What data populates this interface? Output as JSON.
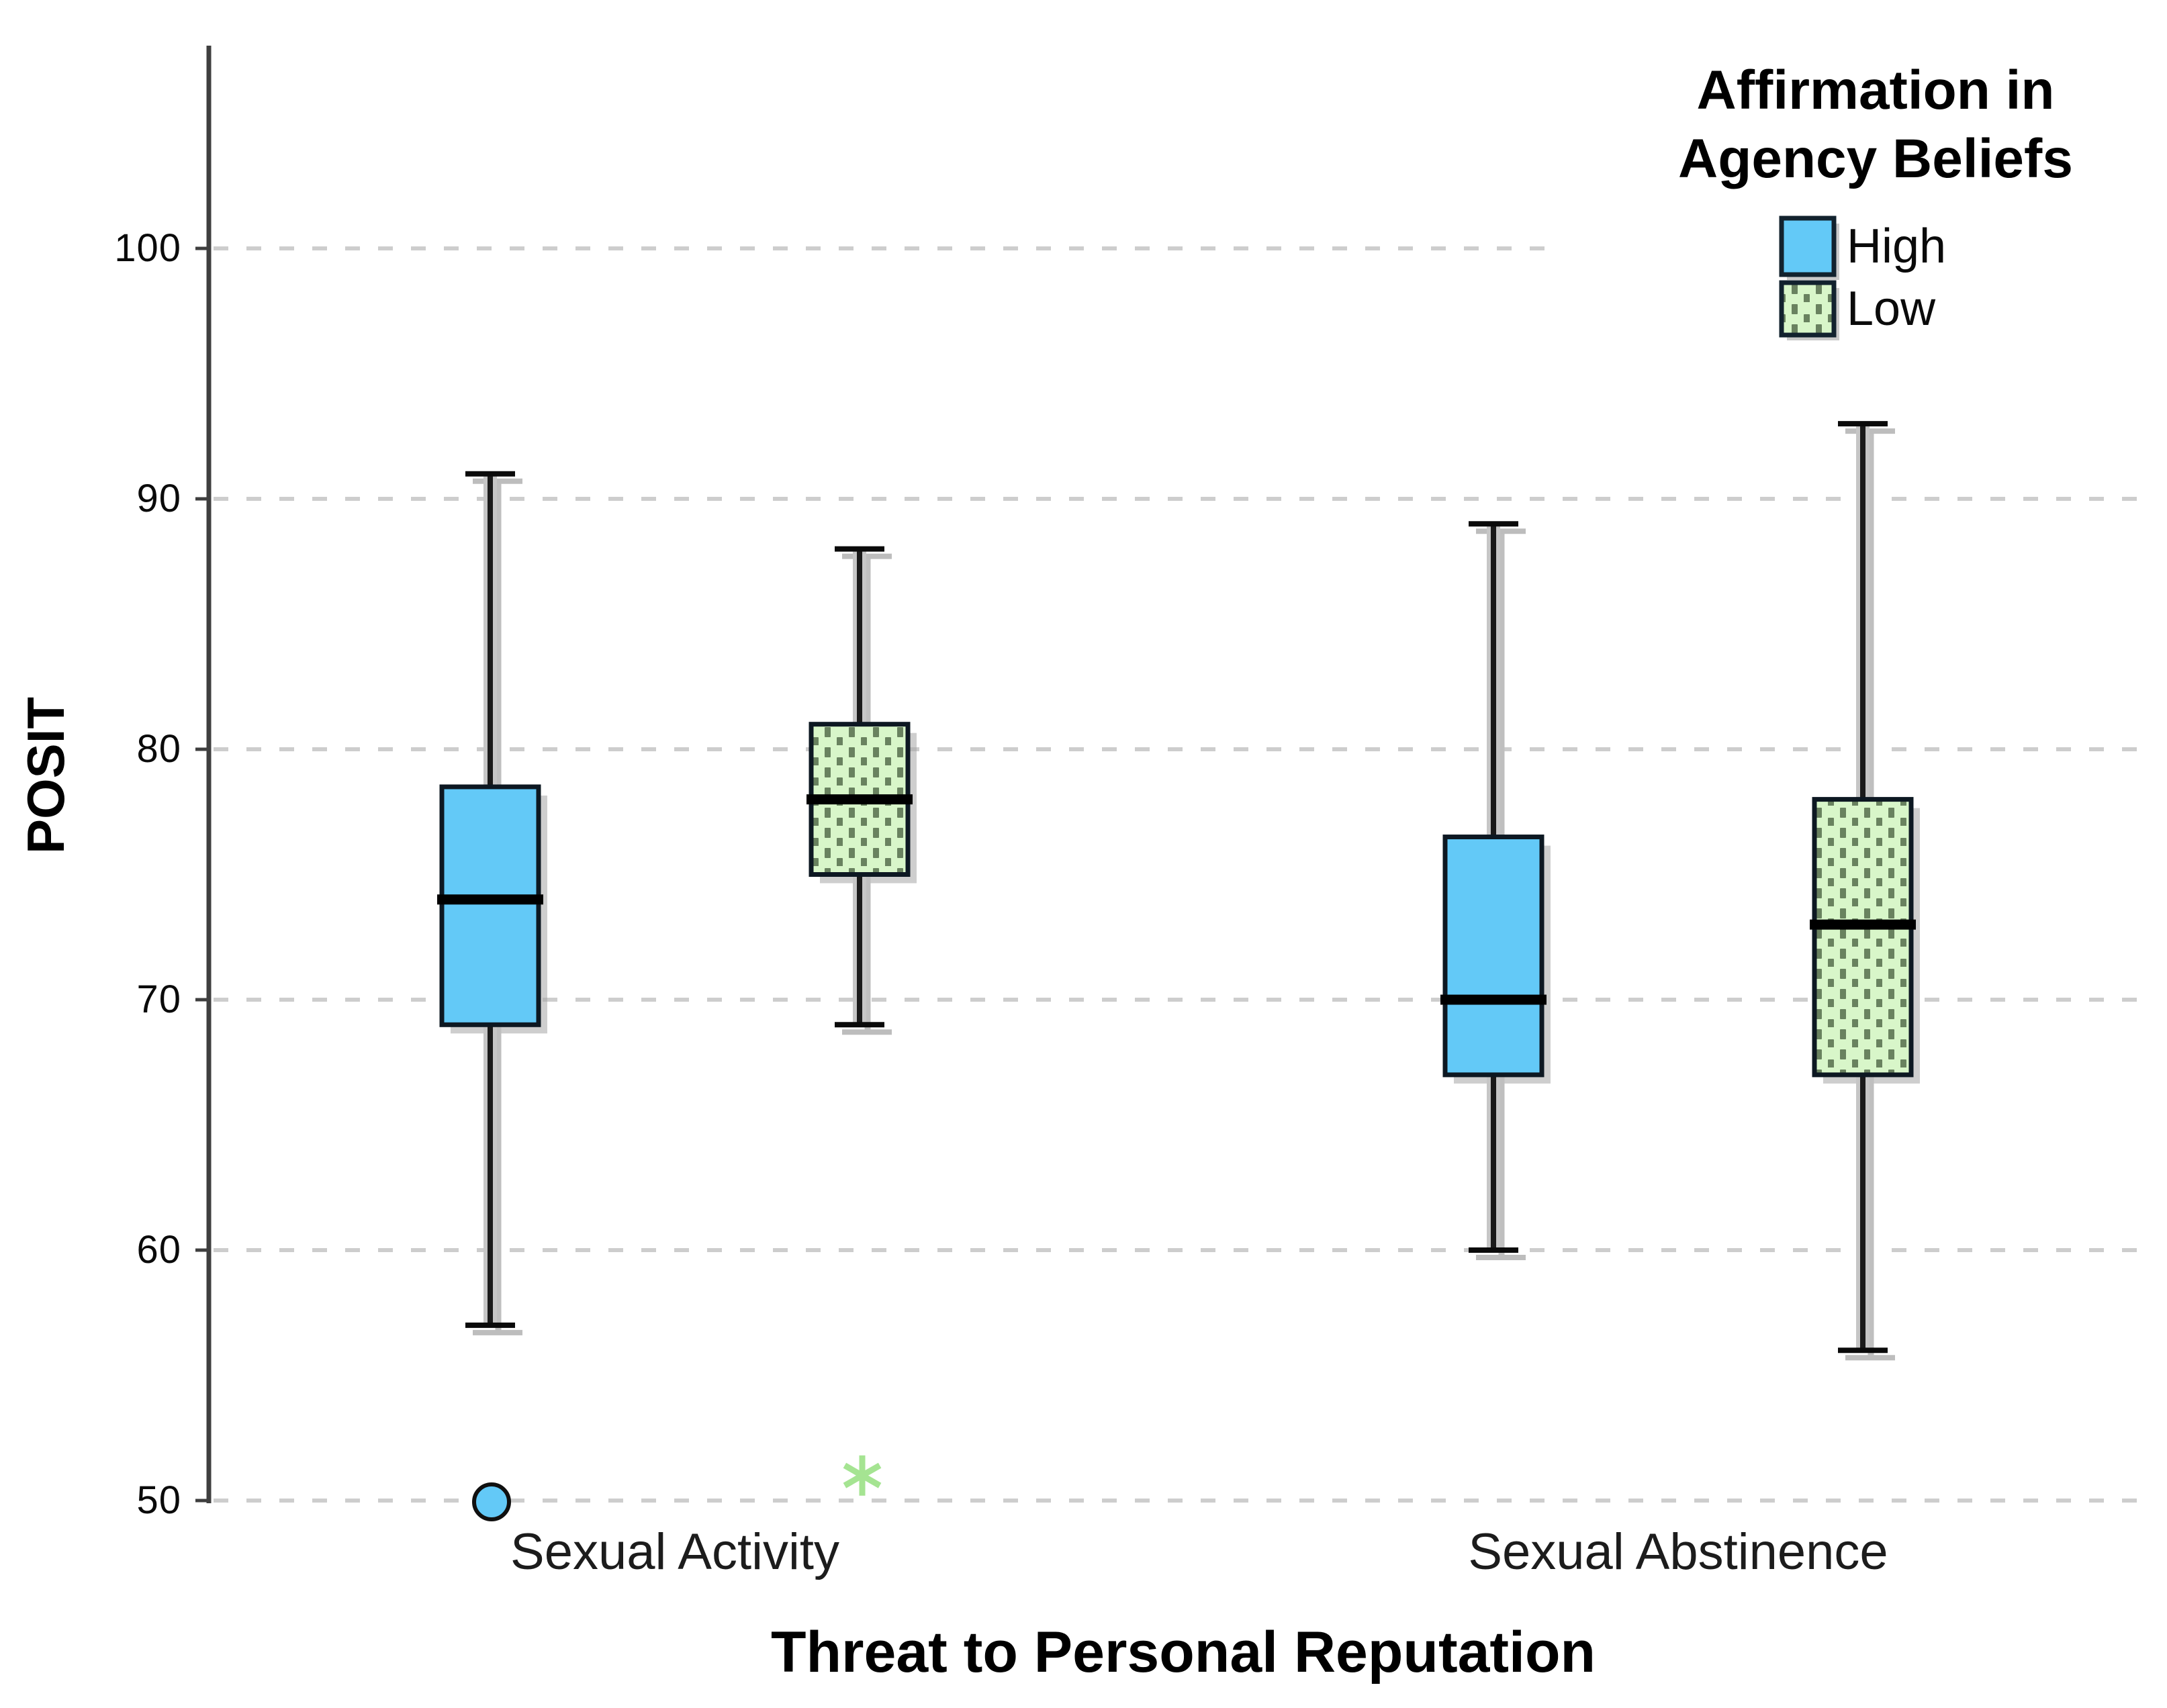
{
  "chart_data": {
    "type": "boxplot",
    "x_axis": {
      "title": "Threat to Personal Reputation",
      "categories": [
        "Sexual Activity",
        "Sexual Abstinence"
      ]
    },
    "y_axis": {
      "label": "POSIT",
      "ticks": [
        100,
        90,
        80,
        70,
        60,
        50
      ],
      "range": [
        50,
        100
      ],
      "grid": "horizontal-dashed"
    },
    "legend": {
      "title": "Affirmation in Agency Beliefs",
      "title_lines": [
        "Affirmation in",
        "Agency Beliefs"
      ],
      "position": "top-right",
      "items": [
        {
          "label": "High",
          "fill": "#63c9f7",
          "pattern": "solid"
        },
        {
          "label": "Low",
          "fill": "#d8f6c9",
          "pattern": "dotted",
          "dot_color": "#69825f"
        }
      ]
    },
    "series": [
      {
        "name": "High",
        "fill": "#63c9f7",
        "pattern": "solid",
        "boxes": [
          {
            "category": "Sexual Activity",
            "whisker_low": 57,
            "q1": 69,
            "median": 74,
            "q3": 78.5,
            "whisker_high": 91,
            "outliers": [
              {
                "value": 50,
                "marker": "circle"
              }
            ]
          },
          {
            "category": "Sexual Abstinence",
            "whisker_low": 60,
            "q1": 67,
            "median": 70,
            "q3": 76.5,
            "whisker_high": 89,
            "outliers": []
          }
        ]
      },
      {
        "name": "Low",
        "fill": "#d8f6c9",
        "pattern": "dotted",
        "dot_color": "#69825f",
        "boxes": [
          {
            "category": "Sexual Activity",
            "whisker_low": 69,
            "q1": 75,
            "median": 78,
            "q3": 81,
            "whisker_high": 88,
            "outliers": [
              {
                "value": 51,
                "marker": "asterisk"
              }
            ]
          },
          {
            "category": "Sexual Abstinence",
            "whisker_low": 56,
            "q1": 67,
            "median": 73,
            "q3": 78,
            "whisker_high": 93,
            "outliers": []
          }
        ]
      }
    ]
  },
  "colors": {
    "grid": "#cdcdcd",
    "axis": "#3f3f3f",
    "box_border": "#0d1822",
    "median": "#000000",
    "shadow": "#a6a6a6",
    "whisker": "#1a1a1a",
    "whisker_halo": "#c6c6c6",
    "asterisk": "#a5e492",
    "text": "#000000"
  }
}
